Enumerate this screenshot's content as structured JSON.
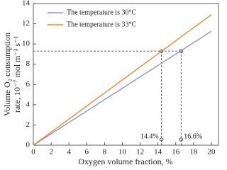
{
  "chart_data": {
    "type": "line",
    "xlabel": "Oxygen volume fraction, %",
    "ylabel": [
      "Volume O₂ consumption",
      "rate, 10⁻⁷ mol m⁻³ s⁻¹"
    ],
    "x": [
      0,
      20
    ],
    "series": [
      {
        "name": "The temperature is 30°C",
        "color": "#8c96c6",
        "values": [
          0,
          11.26
        ]
      },
      {
        "name": "The temperature is 33°C",
        "color": "#f28a2e",
        "values": [
          0,
          12.9
        ]
      }
    ],
    "reference_y": 9.3,
    "markers": [
      {
        "x": 14.4,
        "label": "14.4%"
      },
      {
        "x": 16.6,
        "label": "16.6%"
      }
    ],
    "xlim": [
      0,
      20.8
    ],
    "ylim": [
      0,
      14
    ],
    "xticks": [
      0,
      2,
      4,
      6,
      8,
      10,
      12,
      14,
      16,
      18,
      20
    ],
    "yticks": [
      0,
      2,
      4,
      6,
      8,
      10,
      12,
      14
    ],
    "legend": "upper left"
  }
}
